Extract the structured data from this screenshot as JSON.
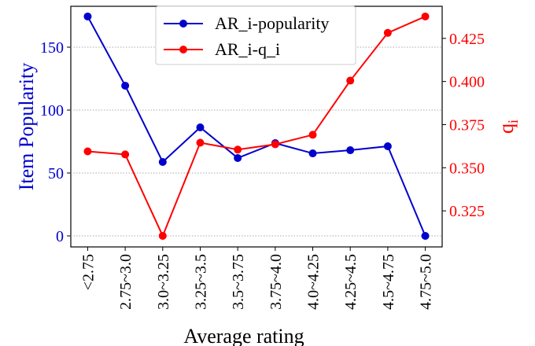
{
  "chart_data": {
    "type": "line",
    "xlabel": "Average rating",
    "ylabel": "Item Popularity",
    "y2label": "q",
    "y2label_subscript": "i",
    "categories": [
      "<2.75",
      "2.75~3.0",
      "3.0~3.25",
      "3.25~3.5",
      "3.5~3.75",
      "3.75~4.0",
      "4.0~4.25",
      "4.25~4.5",
      "4.5~4.75",
      "4.75~5.0"
    ],
    "series": [
      {
        "name": "AR_i-popularity",
        "color": "#0000cd",
        "axis": "y",
        "values": [
          174.4,
          119.4,
          58.75,
          86.25,
          61.9,
          73.75,
          65.6,
          68.1,
          71.25,
          0
        ]
      },
      {
        "name": "AR_i-q_i",
        "color": "#ff0000",
        "axis": "y2",
        "values": [
          0.3595,
          0.3577,
          0.3105,
          0.3645,
          0.3605,
          0.3636,
          0.3691,
          0.4005,
          0.4282,
          0.4377
        ]
      }
    ],
    "ylim": [
      -8.75,
      182.5
    ],
    "yticks": [
      0,
      50,
      100,
      150
    ],
    "y2lim": [
      0.3041,
      0.4436
    ],
    "y2ticks": [
      {
        "value": 0.325,
        "label": "0.325"
      },
      {
        "value": 0.35,
        "label": "0.350"
      },
      {
        "value": 0.375,
        "label": "0.375"
      },
      {
        "value": 0.4,
        "label": "0.400"
      },
      {
        "value": 0.425,
        "label": "0.425"
      }
    ],
    "grid": true,
    "legend": "upper center"
  }
}
